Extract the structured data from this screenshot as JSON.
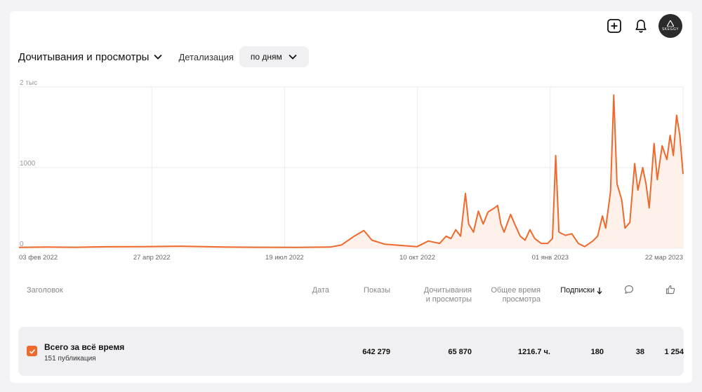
{
  "header": {
    "metric_title": "Дочитывания и просмотры",
    "detail_label": "Детализация",
    "detail_value": "по дням",
    "avatar_text": "SKEGGY"
  },
  "colors": {
    "accent": "#ec6a2d",
    "fill": "#fdeee6"
  },
  "icons": [
    "add-square-icon",
    "bell-icon",
    "chevron-down-icon",
    "sort-down-arrow-icon",
    "comment-icon",
    "like-icon",
    "check-icon"
  ],
  "chart_data": {
    "type": "area",
    "y_ticks": [
      {
        "value": 0,
        "label": "0"
      },
      {
        "value": 1000,
        "label": "1000"
      },
      {
        "value": 2000,
        "label": "2 тыс"
      }
    ],
    "x_ticks": [
      "03 фев 2022",
      "27 апр 2022",
      "19 июл 2022",
      "10 окт 2022",
      "01 янв 2023",
      "22 мар 2023"
    ],
    "x_range": [
      "2022-02-03",
      "2023-03-22"
    ],
    "ylim": [
      0,
      2000
    ],
    "grid": true,
    "series": [
      {
        "points": [
          [
            "2022-02-03",
            10
          ],
          [
            "2022-02-20",
            15
          ],
          [
            "2022-03-10",
            12
          ],
          [
            "2022-03-30",
            18
          ],
          [
            "2022-04-20",
            20
          ],
          [
            "2022-05-15",
            25
          ],
          [
            "2022-06-10",
            15
          ],
          [
            "2022-07-01",
            12
          ],
          [
            "2022-07-25",
            10
          ],
          [
            "2022-08-15",
            15
          ],
          [
            "2022-08-22",
            40
          ],
          [
            "2022-08-30",
            150
          ],
          [
            "2022-09-05",
            220
          ],
          [
            "2022-09-10",
            100
          ],
          [
            "2022-09-18",
            50
          ],
          [
            "2022-09-28",
            35
          ],
          [
            "2022-10-08",
            20
          ],
          [
            "2022-10-15",
            90
          ],
          [
            "2022-10-22",
            60
          ],
          [
            "2022-10-26",
            150
          ],
          [
            "2022-10-29",
            120
          ],
          [
            "2022-11-01",
            230
          ],
          [
            "2022-11-04",
            150
          ],
          [
            "2022-11-07",
            680
          ],
          [
            "2022-11-09",
            300
          ],
          [
            "2022-11-12",
            200
          ],
          [
            "2022-11-15",
            460
          ],
          [
            "2022-11-18",
            300
          ],
          [
            "2022-11-21",
            450
          ],
          [
            "2022-11-25",
            500
          ],
          [
            "2022-11-27",
            530
          ],
          [
            "2022-11-29",
            300
          ],
          [
            "2022-12-01",
            200
          ],
          [
            "2022-12-05",
            420
          ],
          [
            "2022-12-08",
            280
          ],
          [
            "2022-12-11",
            150
          ],
          [
            "2022-12-14",
            100
          ],
          [
            "2022-12-17",
            230
          ],
          [
            "2022-12-20",
            120
          ],
          [
            "2022-12-24",
            60
          ],
          [
            "2022-12-28",
            60
          ],
          [
            "2022-12-31",
            120
          ],
          [
            "2023-01-02",
            1150
          ],
          [
            "2023-01-04",
            200
          ],
          [
            "2023-01-08",
            160
          ],
          [
            "2023-01-12",
            180
          ],
          [
            "2023-01-16",
            60
          ],
          [
            "2023-01-20",
            20
          ],
          [
            "2023-01-25",
            90
          ],
          [
            "2023-01-28",
            150
          ],
          [
            "2023-01-31",
            400
          ],
          [
            "2023-02-02",
            250
          ],
          [
            "2023-02-05",
            700
          ],
          [
            "2023-02-07",
            1900
          ],
          [
            "2023-02-09",
            800
          ],
          [
            "2023-02-12",
            600
          ],
          [
            "2023-02-14",
            250
          ],
          [
            "2023-02-17",
            320
          ],
          [
            "2023-02-20",
            1050
          ],
          [
            "2023-02-22",
            720
          ],
          [
            "2023-02-25",
            1000
          ],
          [
            "2023-02-27",
            800
          ],
          [
            "2023-03-01",
            500
          ],
          [
            "2023-03-04",
            1300
          ],
          [
            "2023-03-06",
            850
          ],
          [
            "2023-03-09",
            1270
          ],
          [
            "2023-03-12",
            1100
          ],
          [
            "2023-03-14",
            1400
          ],
          [
            "2023-03-16",
            1150
          ],
          [
            "2023-03-18",
            1650
          ],
          [
            "2023-03-20",
            1400
          ],
          [
            "2023-03-22",
            920
          ]
        ]
      }
    ]
  },
  "table": {
    "columns": {
      "title": "Заголовок",
      "date": "Дата",
      "views": "Показы",
      "reads_line1": "Дочитывания",
      "reads_line2": "и просмотры",
      "time_line1": "Общее время",
      "time_line2": "просмотра",
      "subs": "Подписки"
    },
    "total": {
      "title": "Всего за всё время",
      "subtitle": "151 публикация",
      "views": "642 279",
      "reads": "65 870",
      "time": "1216.7 ч.",
      "subs": "180",
      "comments": "38",
      "likes": "1 254"
    }
  }
}
